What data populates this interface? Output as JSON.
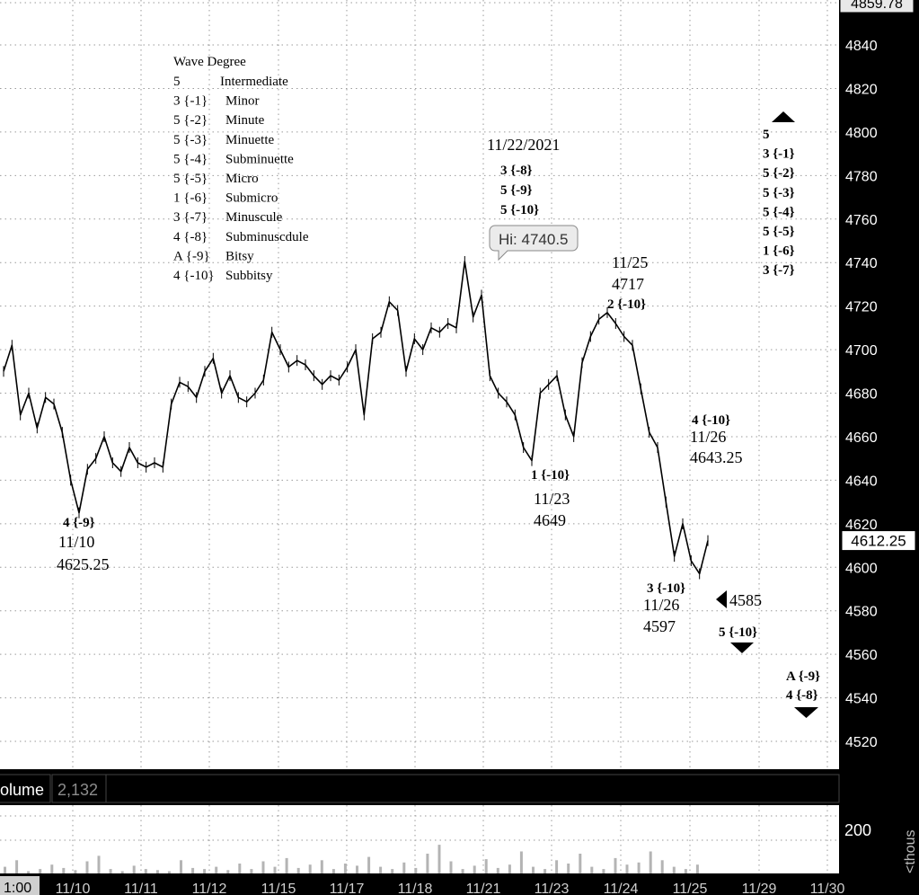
{
  "chart_data": {
    "type": "line",
    "title": "",
    "price_axis": {
      "ylim": [
        4510,
        4860
      ],
      "ticks": [
        4840,
        4820,
        4800,
        4780,
        4760,
        4740,
        4720,
        4700,
        4680,
        4660,
        4640,
        4620,
        4600,
        4580,
        4560,
        4540,
        4520
      ],
      "top_label": "4859.78",
      "last_price": "4612.25",
      "last_value": 4612.25
    },
    "x_axis": {
      "first_label": "1:00",
      "dates": [
        "11/10",
        "11/11",
        "11/12",
        "11/15",
        "11/17",
        "11/18",
        "11/21",
        "11/23",
        "11/24",
        "11/25",
        "11/29",
        "11/30"
      ]
    },
    "price_series": [
      {
        "t": 0,
        "v": 4690
      },
      {
        "t": 1,
        "v": 4702
      },
      {
        "t": 2,
        "v": 4670
      },
      {
        "t": 3,
        "v": 4680
      },
      {
        "t": 4,
        "v": 4664
      },
      {
        "t": 5,
        "v": 4678
      },
      {
        "t": 6,
        "v": 4675
      },
      {
        "t": 7,
        "v": 4662
      },
      {
        "t": 8,
        "v": 4640
      },
      {
        "t": 9,
        "v": 4625
      },
      {
        "t": 10,
        "v": 4645
      },
      {
        "t": 11,
        "v": 4650
      },
      {
        "t": 12,
        "v": 4660
      },
      {
        "t": 13,
        "v": 4648
      },
      {
        "t": 14,
        "v": 4644
      },
      {
        "t": 15,
        "v": 4655
      },
      {
        "t": 16,
        "v": 4648
      },
      {
        "t": 17,
        "v": 4646
      },
      {
        "t": 18,
        "v": 4648
      },
      {
        "t": 19,
        "v": 4646
      },
      {
        "t": 20,
        "v": 4675
      },
      {
        "t": 21,
        "v": 4685
      },
      {
        "t": 22,
        "v": 4683
      },
      {
        "t": 23,
        "v": 4678
      },
      {
        "t": 24,
        "v": 4690
      },
      {
        "t": 25,
        "v": 4696
      },
      {
        "t": 26,
        "v": 4680
      },
      {
        "t": 27,
        "v": 4688
      },
      {
        "t": 28,
        "v": 4678
      },
      {
        "t": 29,
        "v": 4676
      },
      {
        "t": 30,
        "v": 4680
      },
      {
        "t": 31,
        "v": 4686
      },
      {
        "t": 32,
        "v": 4708
      },
      {
        "t": 33,
        "v": 4700
      },
      {
        "t": 34,
        "v": 4692
      },
      {
        "t": 35,
        "v": 4695
      },
      {
        "t": 36,
        "v": 4693
      },
      {
        "t": 37,
        "v": 4688
      },
      {
        "t": 38,
        "v": 4684
      },
      {
        "t": 39,
        "v": 4688
      },
      {
        "t": 40,
        "v": 4686
      },
      {
        "t": 41,
        "v": 4692
      },
      {
        "t": 42,
        "v": 4700
      },
      {
        "t": 43,
        "v": 4670
      },
      {
        "t": 44,
        "v": 4705
      },
      {
        "t": 45,
        "v": 4708
      },
      {
        "t": 46,
        "v": 4722
      },
      {
        "t": 47,
        "v": 4718
      },
      {
        "t": 48,
        "v": 4690
      },
      {
        "t": 49,
        "v": 4705
      },
      {
        "t": 50,
        "v": 4700
      },
      {
        "t": 51,
        "v": 4710
      },
      {
        "t": 52,
        "v": 4708
      },
      {
        "t": 53,
        "v": 4712
      },
      {
        "t": 54,
        "v": 4710
      },
      {
        "t": 55,
        "v": 4740.5
      },
      {
        "t": 56,
        "v": 4715
      },
      {
        "t": 57,
        "v": 4725
      },
      {
        "t": 58,
        "v": 4688
      },
      {
        "t": 59,
        "v": 4680
      },
      {
        "t": 60,
        "v": 4676
      },
      {
        "t": 61,
        "v": 4670
      },
      {
        "t": 62,
        "v": 4655
      },
      {
        "t": 63,
        "v": 4649
      },
      {
        "t": 64,
        "v": 4680
      },
      {
        "t": 65,
        "v": 4684
      },
      {
        "t": 66,
        "v": 4688
      },
      {
        "t": 67,
        "v": 4670
      },
      {
        "t": 68,
        "v": 4660
      },
      {
        "t": 69,
        "v": 4694
      },
      {
        "t": 70,
        "v": 4706
      },
      {
        "t": 71,
        "v": 4714
      },
      {
        "t": 72,
        "v": 4717
      },
      {
        "t": 73,
        "v": 4712
      },
      {
        "t": 74,
        "v": 4706
      },
      {
        "t": 75,
        "v": 4702
      },
      {
        "t": 76,
        "v": 4682
      },
      {
        "t": 77,
        "v": 4662
      },
      {
        "t": 78,
        "v": 4655
      },
      {
        "t": 79,
        "v": 4630
      },
      {
        "t": 80,
        "v": 4605
      },
      {
        "t": 81,
        "v": 4620
      },
      {
        "t": 82,
        "v": 4603
      },
      {
        "t": 83,
        "v": 4597
      },
      {
        "t": 84,
        "v": 4612.25
      }
    ],
    "volume": {
      "label": "Volume",
      "label_visible": "olume",
      "current": "2,132",
      "ticks": [
        200
      ],
      "unit_label": "<thous",
      "bars": [
        30,
        60,
        10,
        20,
        40,
        25,
        15,
        55,
        80,
        20,
        10,
        35,
        20,
        15,
        10,
        60,
        25,
        20,
        30,
        15,
        45,
        20,
        55,
        30,
        70,
        25,
        40,
        60,
        20,
        45,
        35,
        75,
        30,
        20,
        50,
        25,
        90,
        130,
        55,
        20,
        35,
        65,
        25,
        40,
        100,
        30,
        20,
        60,
        45,
        90,
        30,
        20,
        70,
        40,
        50,
        100,
        60,
        30,
        20,
        40
      ]
    },
    "hi_label": "Hi: 4740.5",
    "legend": {
      "title": "Wave Degree",
      "rows": [
        [
          "5",
          "Intermediate"
        ],
        [
          "3 {-1}",
          "Minor"
        ],
        [
          "5 {-2}",
          "Minute"
        ],
        [
          "5 {-3}",
          "Minuette"
        ],
        [
          "5 {-4}",
          "Subminuette"
        ],
        [
          "5 {-5}",
          "Micro"
        ],
        [
          "1 {-6}",
          "Submicro"
        ],
        [
          "3 {-7}",
          "Minuscule"
        ],
        [
          "4 {-8}",
          "Subminuscdule"
        ],
        [
          "A {-9}",
          "Bitsy"
        ],
        [
          "4 {-10}",
          "Subbitsy"
        ]
      ]
    },
    "annotations": {
      "a1110": {
        "wave": "4 {-9}",
        "date": "11/10",
        "value": "4625.25"
      },
      "a1122": {
        "date": "11/22/2021",
        "waves": [
          "3 {-8}",
          "5 {-9}",
          "5 {-10}"
        ]
      },
      "a1123": {
        "wave": "1 {-10}",
        "date": "11/23",
        "value": "4649"
      },
      "a1125": {
        "date": "11/25",
        "value": "4717",
        "wave": "2 {-10}"
      },
      "a1126a": {
        "wave": "4 {-10}",
        "date": "11/26",
        "value": "4643.25"
      },
      "a1126b": {
        "wave": "3 {-10}",
        "date": "11/26",
        "value": "4597"
      },
      "target": {
        "value": "4585"
      },
      "w5": {
        "wave": "5 {-10}"
      },
      "wA": {
        "waves": [
          "A {-9}",
          "4 {-8}"
        ]
      },
      "topStack": {
        "waves": [
          "5",
          "3 {-1}",
          "5 {-2}",
          "5 {-3}",
          "5 {-4}",
          "5 {-5}",
          "1 {-6}",
          "3 {-7}"
        ]
      }
    }
  }
}
